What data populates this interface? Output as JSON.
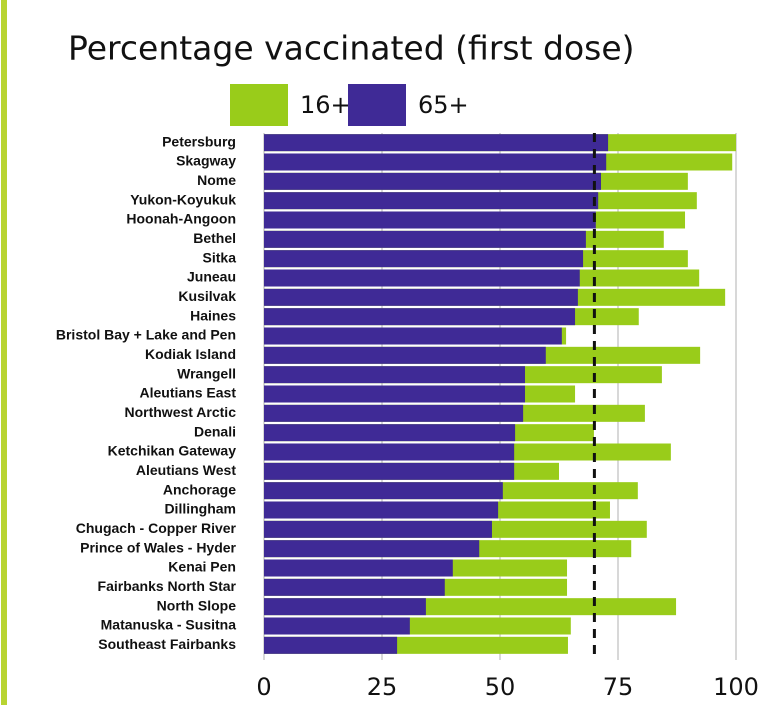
{
  "chart_data": {
    "type": "overlap_hbar",
    "title": "Percentage vaccinated (first dose)",
    "categories": [
      "Petersburg",
      "Skagway",
      "Nome",
      "Yukon-Koyukuk",
      "Hoonah-Angoon",
      "Bethel",
      "Sitka",
      "Juneau",
      "Kusilvak",
      "Haines",
      "Bristol Bay + Lake and Pen",
      "Kodiak Island",
      "Wrangell",
      "Aleutians East",
      "Northwest Arctic",
      "Denali",
      "Ketchikan Gateway",
      "Aleutians West",
      "Anchorage",
      "Dillingham",
      "Chugach - Copper River",
      "Prince of Wales - Hyder",
      "Kenai Pen",
      "Fairbanks North Star",
      "North Slope",
      "Matanuska - Susitna",
      "Southeast Fairbanks"
    ],
    "series": [
      {
        "name": "16+",
        "color": "#99cc1a",
        "values": [
          100,
          99.2,
          89.8,
          91.7,
          89.2,
          84.7,
          89.8,
          92.2,
          97.7,
          79.4,
          64.0,
          92.4,
          84.3,
          65.9,
          80.7,
          69.9,
          86.2,
          62.5,
          79.2,
          73.3,
          81.1,
          77.8,
          64.2,
          64.2,
          87.3,
          65.0,
          64.4
        ]
      },
      {
        "name": "65+",
        "color": "#3f2a96",
        "values": [
          72.9,
          72.5,
          71.4,
          70.8,
          70.3,
          68.2,
          67.6,
          66.9,
          66.5,
          65.9,
          63.1,
          59.7,
          55.3,
          55.3,
          54.9,
          53.2,
          53.0,
          53.0,
          50.6,
          49.6,
          48.3,
          45.6,
          40.0,
          38.3,
          34.3,
          30.9,
          28.2
        ]
      }
    ],
    "xlim": [
      0,
      100
    ],
    "xticks": [
      0,
      25,
      50,
      75,
      100
    ],
    "grid": true,
    "reference_line": 70
  }
}
